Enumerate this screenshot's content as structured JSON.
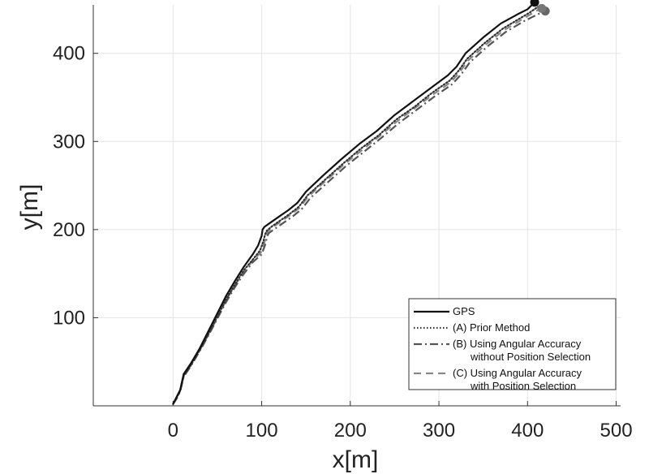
{
  "chart_data": {
    "type": "line",
    "xlabel": "x[m]",
    "ylabel": "y[m]",
    "xlim": [
      -90,
      505
    ],
    "ylim": [
      0,
      455
    ],
    "x_ticks": [
      0,
      100,
      200,
      300,
      400,
      500
    ],
    "y_ticks": [
      100,
      200,
      300,
      400
    ],
    "grid": true,
    "legend_position": "bottom-right",
    "series": [
      {
        "name": "GPS",
        "style": "solid",
        "color": "#111111",
        "x": [
          0,
          4,
          8,
          12,
          20,
          30,
          40,
          50,
          60,
          70,
          80,
          90,
          96,
          100,
          101,
          103,
          110,
          120,
          130,
          140,
          150,
          170,
          190,
          210,
          230,
          250,
          270,
          290,
          310,
          320,
          330,
          350,
          370,
          390,
          400,
          408
        ],
        "y": [
          2,
          10,
          18,
          36,
          48,
          65,
          85,
          105,
          125,
          142,
          158,
          172,
          182,
          193,
          200,
          203,
          208,
          215,
          222,
          230,
          243,
          262,
          280,
          297,
          312,
          330,
          345,
          360,
          375,
          385,
          400,
          418,
          434,
          445,
          450,
          458
        ]
      },
      {
        "name": "(A) Prior Method",
        "style": "dotted",
        "color": "#333333",
        "x": [
          0,
          4,
          8,
          12,
          20,
          30,
          40,
          50,
          60,
          70,
          80,
          90,
          98,
          102,
          104,
          106,
          112,
          122,
          132,
          142,
          152,
          172,
          192,
          212,
          232,
          252,
          272,
          292,
          312,
          322,
          332,
          352,
          372,
          392,
          402,
          412
        ],
        "y": [
          2,
          9,
          17,
          34,
          46,
          63,
          82,
          101,
          121,
          138,
          154,
          166,
          176,
          187,
          195,
          199,
          204,
          211,
          218,
          226,
          239,
          257,
          275,
          292,
          307,
          325,
          339,
          355,
          369,
          380,
          394,
          412,
          428,
          440,
          446,
          453
        ]
      },
      {
        "name": "(B) Using Angular Accuracy without Position Selection",
        "style": "dashdot",
        "color": "#555555",
        "x": [
          0,
          4,
          8,
          12,
          20,
          30,
          40,
          50,
          60,
          70,
          80,
          90,
          100,
          104,
          106,
          108,
          115,
          125,
          135,
          145,
          155,
          175,
          195,
          215,
          235,
          255,
          275,
          295,
          315,
          325,
          335,
          355,
          375,
          395,
          405,
          415
        ],
        "y": [
          2,
          8,
          16,
          33,
          45,
          62,
          80,
          99,
          118,
          135,
          150,
          163,
          172,
          183,
          192,
          196,
          201,
          208,
          215,
          223,
          236,
          254,
          272,
          288,
          304,
          321,
          336,
          351,
          365,
          376,
          390,
          408,
          424,
          436,
          441,
          446
        ]
      },
      {
        "name": "(C) Using Angular Accuracy with Position Selection",
        "style": "dashed",
        "color": "#888888",
        "x": [
          0,
          4,
          8,
          12,
          20,
          30,
          40,
          50,
          60,
          70,
          80,
          90,
          99,
          103,
          105,
          107,
          113,
          123,
          133,
          143,
          153,
          173,
          193,
          213,
          233,
          253,
          273,
          293,
          313,
          323,
          333,
          353,
          373,
          393,
          403,
          413
        ],
        "y": [
          2,
          9,
          17,
          34,
          46,
          63,
          81,
          100,
          120,
          137,
          152,
          165,
          174,
          185,
          193,
          198,
          203,
          210,
          217,
          225,
          238,
          256,
          274,
          290,
          306,
          323,
          338,
          353,
          367,
          378,
          392,
          410,
          426,
          438,
          444,
          450
        ]
      }
    ],
    "endpoint_markers": [
      {
        "x": 408,
        "y": 458,
        "color": "#111111"
      },
      {
        "x": 416,
        "y": 451,
        "color": "#777777"
      },
      {
        "x": 420,
        "y": 448,
        "color": "#666666"
      }
    ],
    "legend_entries": [
      {
        "lines": [
          "GPS"
        ],
        "style": "solid",
        "color": "#111111"
      },
      {
        "lines": [
          "(A) Prior Method"
        ],
        "style": "dotted",
        "color": "#333333"
      },
      {
        "lines": [
          "(B) Using Angular Accuracy",
          "without Position Selection"
        ],
        "style": "dashdot",
        "color": "#555555"
      },
      {
        "lines": [
          "(C) Using Angular Accuracy",
          "with Position Selection"
        ],
        "style": "dashed",
        "color": "#888888"
      }
    ]
  }
}
